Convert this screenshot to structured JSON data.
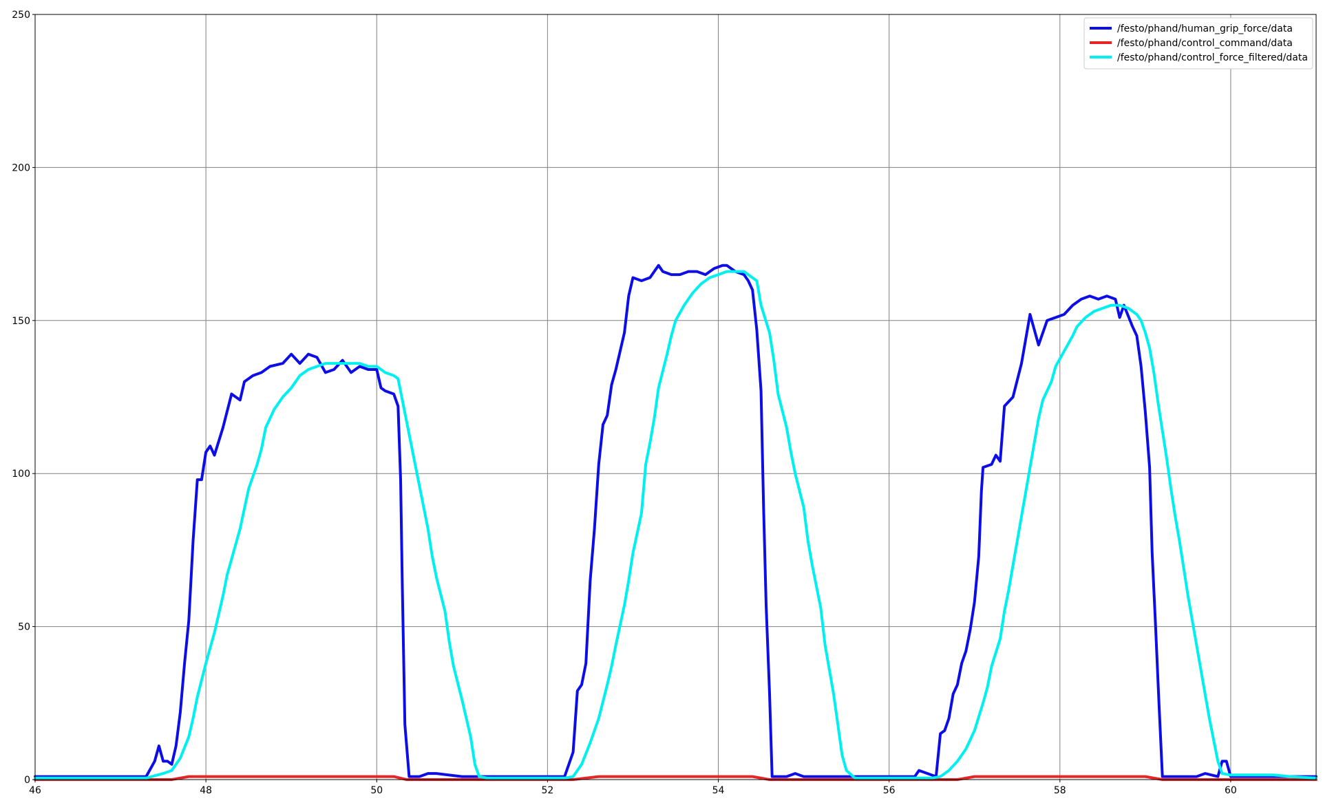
{
  "chart_data": {
    "type": "line",
    "title": "",
    "xlabel": "",
    "ylabel": "",
    "xlim": [
      46,
      61
    ],
    "ylim": [
      0,
      250
    ],
    "grid": true,
    "legend_position": "top-right",
    "x_ticks": [
      46,
      48,
      50,
      52,
      54,
      56,
      58,
      60
    ],
    "x_tick_labels": [
      "46",
      "48",
      "50",
      "52",
      "54",
      "56",
      "58",
      "60"
    ],
    "y_ticks": [
      0,
      50,
      100,
      150,
      200,
      250
    ],
    "y_tick_labels": [
      "0",
      "50",
      "100",
      "150",
      "200",
      "250"
    ],
    "series": [
      {
        "name": "/festo/phand/human_grip_force/data",
        "color": "#0d0de6",
        "points": [
          [
            46.0,
            1
          ],
          [
            46.5,
            1
          ],
          [
            47.0,
            1
          ],
          [
            47.3,
            1
          ],
          [
            47.4,
            6
          ],
          [
            47.45,
            11
          ],
          [
            47.5,
            6
          ],
          [
            47.55,
            6
          ],
          [
            47.6,
            5
          ],
          [
            47.65,
            11
          ],
          [
            47.7,
            22
          ],
          [
            47.75,
            38
          ],
          [
            47.8,
            52
          ],
          [
            47.85,
            78
          ],
          [
            47.9,
            98
          ],
          [
            47.95,
            98
          ],
          [
            48.0,
            107
          ],
          [
            48.05,
            109
          ],
          [
            48.1,
            106
          ],
          [
            48.2,
            115
          ],
          [
            48.3,
            126
          ],
          [
            48.4,
            124
          ],
          [
            48.45,
            130
          ],
          [
            48.55,
            132
          ],
          [
            48.65,
            133
          ],
          [
            48.75,
            135
          ],
          [
            48.9,
            136
          ],
          [
            49.0,
            139
          ],
          [
            49.1,
            136
          ],
          [
            49.2,
            139
          ],
          [
            49.3,
            138
          ],
          [
            49.4,
            133
          ],
          [
            49.5,
            134
          ],
          [
            49.6,
            137
          ],
          [
            49.7,
            133
          ],
          [
            49.8,
            135
          ],
          [
            49.9,
            134
          ],
          [
            50.0,
            134
          ],
          [
            50.05,
            128
          ],
          [
            50.1,
            127
          ],
          [
            50.2,
            126
          ],
          [
            50.25,
            122
          ],
          [
            50.28,
            98
          ],
          [
            50.3,
            63
          ],
          [
            50.33,
            18
          ],
          [
            50.38,
            1
          ],
          [
            50.5,
            1
          ],
          [
            50.6,
            2
          ],
          [
            50.7,
            2
          ],
          [
            51.0,
            1
          ],
          [
            51.5,
            1
          ],
          [
            52.0,
            1
          ],
          [
            52.2,
            1
          ],
          [
            52.25,
            5
          ],
          [
            52.3,
            9
          ],
          [
            52.35,
            29
          ],
          [
            52.4,
            31
          ],
          [
            52.45,
            38
          ],
          [
            52.5,
            65
          ],
          [
            52.55,
            82
          ],
          [
            52.6,
            103
          ],
          [
            52.65,
            116
          ],
          [
            52.7,
            119
          ],
          [
            52.75,
            129
          ],
          [
            52.8,
            134
          ],
          [
            52.9,
            146
          ],
          [
            52.95,
            158
          ],
          [
            53.0,
            164
          ],
          [
            53.1,
            163
          ],
          [
            53.2,
            164
          ],
          [
            53.3,
            168
          ],
          [
            53.35,
            166
          ],
          [
            53.45,
            165
          ],
          [
            53.55,
            165
          ],
          [
            53.65,
            166
          ],
          [
            53.75,
            166
          ],
          [
            53.85,
            165
          ],
          [
            53.95,
            167
          ],
          [
            54.05,
            168
          ],
          [
            54.1,
            168
          ],
          [
            54.2,
            166
          ],
          [
            54.3,
            165
          ],
          [
            54.35,
            163
          ],
          [
            54.4,
            160
          ],
          [
            54.45,
            147
          ],
          [
            54.5,
            127
          ],
          [
            54.53,
            89
          ],
          [
            54.56,
            57
          ],
          [
            54.6,
            28
          ],
          [
            54.63,
            1
          ],
          [
            54.8,
            1
          ],
          [
            54.9,
            2
          ],
          [
            55.0,
            1
          ],
          [
            55.5,
            1
          ],
          [
            56.0,
            1
          ],
          [
            56.3,
            1
          ],
          [
            56.35,
            3
          ],
          [
            56.55,
            1
          ],
          [
            56.6,
            15
          ],
          [
            56.65,
            16
          ],
          [
            56.7,
            20
          ],
          [
            56.75,
            28
          ],
          [
            56.8,
            31
          ],
          [
            56.85,
            38
          ],
          [
            56.9,
            42
          ],
          [
            56.95,
            49
          ],
          [
            57.0,
            58
          ],
          [
            57.05,
            73
          ],
          [
            57.08,
            94
          ],
          [
            57.1,
            102
          ],
          [
            57.2,
            103
          ],
          [
            57.25,
            106
          ],
          [
            57.3,
            104
          ],
          [
            57.35,
            122
          ],
          [
            57.45,
            125
          ],
          [
            57.55,
            136
          ],
          [
            57.65,
            152
          ],
          [
            57.75,
            142
          ],
          [
            57.85,
            150
          ],
          [
            57.95,
            151
          ],
          [
            58.05,
            152
          ],
          [
            58.15,
            155
          ],
          [
            58.25,
            157
          ],
          [
            58.35,
            158
          ],
          [
            58.45,
            157
          ],
          [
            58.55,
            158
          ],
          [
            58.65,
            157
          ],
          [
            58.7,
            151
          ],
          [
            58.75,
            155
          ],
          [
            58.85,
            148
          ],
          [
            58.9,
            145
          ],
          [
            58.95,
            135
          ],
          [
            59.0,
            120
          ],
          [
            59.05,
            102
          ],
          [
            59.08,
            74
          ],
          [
            59.12,
            50
          ],
          [
            59.16,
            25
          ],
          [
            59.2,
            1
          ],
          [
            59.3,
            1
          ],
          [
            59.6,
            1
          ],
          [
            59.7,
            2
          ],
          [
            59.85,
            1
          ],
          [
            59.9,
            6
          ],
          [
            59.95,
            6
          ],
          [
            60.0,
            1
          ],
          [
            60.5,
            1
          ],
          [
            61.0,
            1
          ]
        ]
      },
      {
        "name": "/festo/phand/control_command/data",
        "color": "#e62626",
        "points": [
          [
            46.0,
            0
          ],
          [
            47.6,
            0
          ],
          [
            47.8,
            1
          ],
          [
            50.2,
            1
          ],
          [
            50.35,
            0
          ],
          [
            52.3,
            0
          ],
          [
            52.6,
            1
          ],
          [
            54.4,
            1
          ],
          [
            54.6,
            0
          ],
          [
            56.8,
            0
          ],
          [
            57.0,
            1
          ],
          [
            59.0,
            1
          ],
          [
            59.2,
            0
          ],
          [
            61.0,
            0
          ]
        ]
      },
      {
        "name": "/festo/phand/control_force_filtered/data",
        "color": "#00f0f0",
        "points": [
          [
            46.0,
            0.5
          ],
          [
            47.0,
            0.5
          ],
          [
            47.3,
            0.5
          ],
          [
            47.5,
            2
          ],
          [
            47.6,
            3
          ],
          [
            47.7,
            7
          ],
          [
            47.8,
            14
          ],
          [
            47.85,
            20
          ],
          [
            47.9,
            27
          ],
          [
            48.0,
            38
          ],
          [
            48.1,
            48
          ],
          [
            48.2,
            60
          ],
          [
            48.25,
            67
          ],
          [
            48.3,
            72
          ],
          [
            48.4,
            82
          ],
          [
            48.5,
            95
          ],
          [
            48.6,
            103
          ],
          [
            48.65,
            108
          ],
          [
            48.7,
            115
          ],
          [
            48.8,
            121
          ],
          [
            48.9,
            125
          ],
          [
            49.0,
            128
          ],
          [
            49.1,
            132
          ],
          [
            49.2,
            134
          ],
          [
            49.3,
            135
          ],
          [
            49.4,
            136
          ],
          [
            49.5,
            136
          ],
          [
            49.6,
            136
          ],
          [
            49.7,
            136
          ],
          [
            49.8,
            136
          ],
          [
            49.9,
            135
          ],
          [
            50.0,
            135
          ],
          [
            50.1,
            133
          ],
          [
            50.2,
            132
          ],
          [
            50.25,
            131
          ],
          [
            50.3,
            124
          ],
          [
            50.4,
            110
          ],
          [
            50.5,
            96
          ],
          [
            50.6,
            82
          ],
          [
            50.65,
            73
          ],
          [
            50.7,
            66
          ],
          [
            50.8,
            55
          ],
          [
            50.85,
            45
          ],
          [
            50.9,
            37
          ],
          [
            51.0,
            26
          ],
          [
            51.1,
            14
          ],
          [
            51.15,
            5
          ],
          [
            51.2,
            1
          ],
          [
            51.3,
            0.5
          ],
          [
            51.8,
            0.5
          ],
          [
            52.2,
            0.5
          ],
          [
            52.3,
            1
          ],
          [
            52.4,
            5
          ],
          [
            52.5,
            12
          ],
          [
            52.6,
            20
          ],
          [
            52.7,
            31
          ],
          [
            52.75,
            37
          ],
          [
            52.8,
            44
          ],
          [
            52.9,
            57
          ],
          [
            52.95,
            65
          ],
          [
            53.0,
            74
          ],
          [
            53.1,
            87
          ],
          [
            53.15,
            103
          ],
          [
            53.2,
            110
          ],
          [
            53.25,
            118
          ],
          [
            53.3,
            128
          ],
          [
            53.4,
            139
          ],
          [
            53.45,
            145
          ],
          [
            53.5,
            150
          ],
          [
            53.6,
            155
          ],
          [
            53.7,
            159
          ],
          [
            53.8,
            162
          ],
          [
            53.9,
            164
          ],
          [
            54.0,
            165
          ],
          [
            54.1,
            166
          ],
          [
            54.2,
            166
          ],
          [
            54.3,
            166
          ],
          [
            54.35,
            165
          ],
          [
            54.45,
            163
          ],
          [
            54.5,
            155
          ],
          [
            54.6,
            146
          ],
          [
            54.65,
            137
          ],
          [
            54.7,
            126
          ],
          [
            54.8,
            115
          ],
          [
            54.85,
            107
          ],
          [
            54.9,
            100
          ],
          [
            55.0,
            89
          ],
          [
            55.05,
            78
          ],
          [
            55.1,
            70
          ],
          [
            55.2,
            56
          ],
          [
            55.25,
            44
          ],
          [
            55.3,
            36
          ],
          [
            55.35,
            28
          ],
          [
            55.4,
            18
          ],
          [
            55.45,
            8
          ],
          [
            55.5,
            3
          ],
          [
            55.6,
            0.5
          ],
          [
            56.0,
            0.5
          ],
          [
            56.5,
            0.5
          ],
          [
            56.6,
            1
          ],
          [
            56.7,
            3
          ],
          [
            56.8,
            6
          ],
          [
            56.9,
            10
          ],
          [
            57.0,
            16
          ],
          [
            57.1,
            25
          ],
          [
            57.15,
            30
          ],
          [
            57.2,
            37
          ],
          [
            57.3,
            46
          ],
          [
            57.35,
            55
          ],
          [
            57.4,
            62
          ],
          [
            57.45,
            70
          ],
          [
            57.5,
            78
          ],
          [
            57.55,
            86
          ],
          [
            57.6,
            94
          ],
          [
            57.65,
            102
          ],
          [
            57.7,
            110
          ],
          [
            57.75,
            118
          ],
          [
            57.8,
            124
          ],
          [
            57.9,
            130
          ],
          [
            57.95,
            135
          ],
          [
            58.05,
            140
          ],
          [
            58.15,
            145
          ],
          [
            58.2,
            148
          ],
          [
            58.3,
            151
          ],
          [
            58.4,
            153
          ],
          [
            58.5,
            154
          ],
          [
            58.6,
            155
          ],
          [
            58.7,
            155
          ],
          [
            58.8,
            154
          ],
          [
            58.9,
            152
          ],
          [
            58.95,
            150
          ],
          [
            59.0,
            146
          ],
          [
            59.05,
            141
          ],
          [
            59.1,
            133
          ],
          [
            59.15,
            123
          ],
          [
            59.2,
            114
          ],
          [
            59.25,
            105
          ],
          [
            59.3,
            95
          ],
          [
            59.35,
            86
          ],
          [
            59.4,
            78
          ],
          [
            59.45,
            69
          ],
          [
            59.5,
            60
          ],
          [
            59.55,
            52
          ],
          [
            59.6,
            44
          ],
          [
            59.65,
            36
          ],
          [
            59.7,
            28
          ],
          [
            59.75,
            20
          ],
          [
            59.8,
            13
          ],
          [
            59.85,
            6
          ],
          [
            59.9,
            2
          ],
          [
            60.0,
            1.5
          ],
          [
            60.5,
            1.5
          ],
          [
            60.7,
            1
          ],
          [
            61.0,
            0.5
          ]
        ]
      }
    ]
  }
}
